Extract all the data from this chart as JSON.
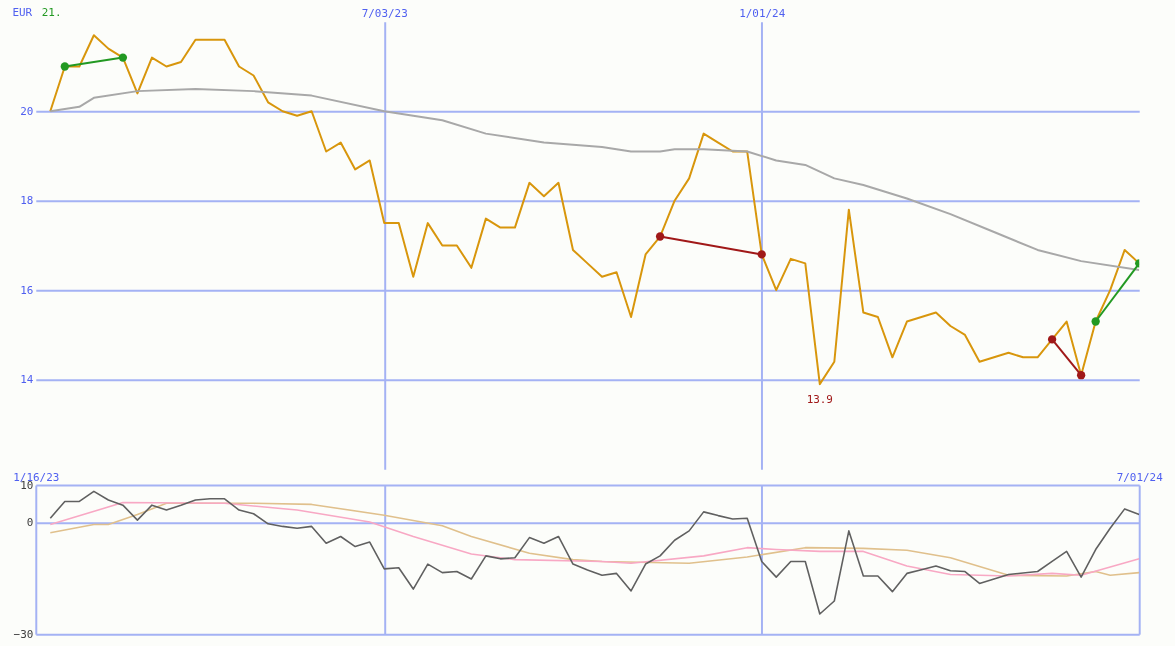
{
  "chart_data": [
    {
      "type": "line",
      "ylabel": "EUR",
      "annotations": [
        "21.",
        {
          "text": "13.9",
          "x": "2024-01-29",
          "y": 13.9
        }
      ],
      "x": [
        "2023-01-23",
        "2023-01-30",
        "2023-02-06",
        "2023-02-13",
        "2023-02-20",
        "2023-02-27",
        "2023-03-06",
        "2023-03-13",
        "2023-03-20",
        "2023-03-27",
        "2023-04-03",
        "2023-04-10",
        "2023-04-17",
        "2023-04-24",
        "2023-05-01",
        "2023-05-08",
        "2023-05-15",
        "2023-05-22",
        "2023-05-29",
        "2023-06-05",
        "2023-06-12",
        "2023-06-19",
        "2023-06-26",
        "2023-07-03",
        "2023-07-10",
        "2023-07-17",
        "2023-07-24",
        "2023-07-31",
        "2023-08-07",
        "2023-08-14",
        "2023-08-21",
        "2023-08-28",
        "2023-09-04",
        "2023-09-11",
        "2023-09-18",
        "2023-09-25",
        "2023-10-02",
        "2023-10-09",
        "2023-10-16",
        "2023-10-23",
        "2023-10-30",
        "2023-11-06",
        "2023-11-13",
        "2023-11-20",
        "2023-11-27",
        "2023-12-04",
        "2023-12-11",
        "2023-12-18",
        "2023-12-25",
        "2024-01-01",
        "2024-01-08",
        "2024-01-15",
        "2024-01-22",
        "2024-01-29",
        "2024-02-05",
        "2024-02-12",
        "2024-02-19",
        "2024-02-26",
        "2024-03-04",
        "2024-03-11",
        "2024-03-18",
        "2024-03-25",
        "2024-04-01",
        "2024-04-08",
        "2024-04-15",
        "2024-04-22",
        "2024-04-29",
        "2024-05-06",
        "2024-05-13",
        "2024-05-20",
        "2024-05-27",
        "2024-06-03",
        "2024-06-10",
        "2024-06-17",
        "2024-06-24",
        "2024-07-01"
      ],
      "series": [
        {
          "color": "#d8960c",
          "values": [
            20.0,
            21.0,
            21.0,
            21.7,
            21.4,
            21.2,
            20.4,
            21.2,
            21.0,
            21.1,
            21.6,
            21.6,
            21.6,
            21.0,
            20.8,
            20.2,
            20.0,
            19.9,
            20.0,
            19.1,
            19.3,
            18.7,
            18.9,
            17.5,
            17.5,
            16.3,
            17.5,
            17.0,
            17.0,
            16.5,
            17.6,
            17.4,
            17.4,
            18.4,
            18.1,
            18.4,
            16.9,
            16.6,
            16.3,
            16.4,
            15.4,
            16.8,
            17.2,
            18.0,
            18.5,
            19.5,
            19.3,
            19.1,
            19.1,
            16.8,
            16.0,
            16.7,
            16.6,
            13.9,
            14.4,
            17.8,
            15.5,
            15.4,
            14.5,
            15.3,
            15.4,
            15.5,
            15.2,
            15.0,
            14.4,
            14.5,
            14.6,
            14.5,
            14.5,
            14.9,
            15.3,
            14.1,
            15.3,
            16.0,
            16.9,
            16.6
          ]
        },
        {
          "color": "#a8a8a8",
          "x": [
            "2023-01-23",
            "2023-02-06",
            "2023-02-13",
            "2023-03-06",
            "2023-04-03",
            "2023-05-01",
            "2023-05-29",
            "2023-07-03",
            "2023-07-17",
            "2023-07-31",
            "2023-08-21",
            "2023-09-18",
            "2023-10-16",
            "2023-10-30",
            "2023-11-13",
            "2023-11-20",
            "2023-12-04",
            "2023-12-25",
            "2024-01-08",
            "2024-01-22",
            "2024-02-05",
            "2024-02-19",
            "2024-03-11",
            "2024-04-01",
            "2024-04-22",
            "2024-05-13",
            "2024-06-03",
            "2024-07-01"
          ],
          "values": [
            20.0,
            20.1,
            20.3,
            20.45,
            20.5,
            20.45,
            20.35,
            20.0,
            19.9,
            19.8,
            19.5,
            19.3,
            19.2,
            19.1,
            19.1,
            19.15,
            19.15,
            19.1,
            18.9,
            18.8,
            18.5,
            18.35,
            18.05,
            17.7,
            17.3,
            16.9,
            16.65,
            16.45
          ]
        },
        {
          "color": "#229922",
          "marker": "circle",
          "x": [
            "2023-01-30",
            "2023-02-27"
          ],
          "values": [
            21.0,
            21.2
          ]
        },
        {
          "color": "#a01818",
          "marker": "circle",
          "x": [
            "2023-11-13",
            "2024-01-01"
          ],
          "values": [
            17.2,
            16.8
          ]
        },
        {
          "color": "#a01818",
          "marker": "circle",
          "x": [
            "2024-05-20",
            "2024-06-03"
          ],
          "values": [
            14.9,
            14.1
          ]
        },
        {
          "color": "#229922",
          "marker": "circle",
          "x": [
            "2024-06-10",
            "2024-07-01"
          ],
          "values": [
            15.3,
            16.6
          ]
        }
      ],
      "xlim": [
        "2023-01-16",
        "2024-07-01"
      ],
      "xticks": [
        {
          "value": "2023-07-03",
          "label": "7/03/23"
        },
        {
          "value": "2024-01-01",
          "label": "1/01/24"
        }
      ],
      "ylim": [
        12,
        22
      ],
      "yticks": [
        14,
        16,
        18,
        20
      ],
      "grid": true
    },
    {
      "type": "line",
      "x": [
        "2023-01-23",
        "2023-01-30",
        "2023-02-06",
        "2023-02-13",
        "2023-02-20",
        "2023-02-27",
        "2023-03-06",
        "2023-03-13",
        "2023-03-20",
        "2023-03-27",
        "2023-04-03",
        "2023-04-10",
        "2023-04-17",
        "2023-04-24",
        "2023-05-01",
        "2023-05-08",
        "2023-05-15",
        "2023-05-22",
        "2023-05-29",
        "2023-06-05",
        "2023-06-12",
        "2023-06-19",
        "2023-06-26",
        "2023-07-03",
        "2023-07-10",
        "2023-07-17",
        "2023-07-24",
        "2023-07-31",
        "2023-08-07",
        "2023-08-14",
        "2023-08-21",
        "2023-08-28",
        "2023-09-04",
        "2023-09-11",
        "2023-09-18",
        "2023-09-25",
        "2023-10-02",
        "2023-10-09",
        "2023-10-16",
        "2023-10-23",
        "2023-10-30",
        "2023-11-06",
        "2023-11-13",
        "2023-11-20",
        "2023-11-27",
        "2023-12-04",
        "2023-12-11",
        "2023-12-18",
        "2023-12-25",
        "2024-01-01",
        "2024-01-08",
        "2024-01-15",
        "2024-01-22",
        "2024-01-29",
        "2024-02-05",
        "2024-02-12",
        "2024-02-19",
        "2024-02-26",
        "2024-03-04",
        "2024-03-11",
        "2024-03-18",
        "2024-03-25",
        "2024-04-01",
        "2024-04-08",
        "2024-04-15",
        "2024-04-22",
        "2024-04-29",
        "2024-05-06",
        "2024-05-13",
        "2024-05-20",
        "2024-05-27",
        "2024-06-03",
        "2024-06-10",
        "2024-06-17",
        "2024-06-24",
        "2024-07-01"
      ],
      "series": [
        {
          "color": "#e0c08c",
          "x": [
            "2023-01-23",
            "2023-02-13",
            "2023-02-20",
            "2023-03-06",
            "2023-03-20",
            "2023-05-01",
            "2023-05-29",
            "2023-07-03",
            "2023-07-31",
            "2023-08-14",
            "2023-09-11",
            "2023-10-02",
            "2023-10-16",
            "2023-11-27",
            "2023-12-25",
            "2024-01-22",
            "2024-02-19",
            "2024-03-11",
            "2024-04-01",
            "2024-04-29",
            "2024-05-27",
            "2024-06-10",
            "2024-06-17",
            "2024-07-01"
          ],
          "values": [
            -2.8,
            -0.6,
            -0.6,
            2.1,
            5.1,
            5.1,
            4.8,
            1.9,
            -0.9,
            -3.8,
            -8.3,
            -10.0,
            -10.5,
            -11.0,
            -9.3,
            -6.8,
            -7.0,
            -7.5,
            -9.5,
            -14.2,
            -14.4,
            -13.2,
            -14.2,
            -13.5
          ]
        },
        {
          "color": "#f8a8c4",
          "x": [
            "2023-01-23",
            "2023-02-27",
            "2023-04-17",
            "2023-05-22",
            "2023-06-26",
            "2023-07-17",
            "2023-08-14",
            "2023-09-04",
            "2023-10-16",
            "2023-10-30",
            "2023-12-04",
            "2023-12-25",
            "2024-01-08",
            "2024-01-29",
            "2024-02-19",
            "2024-03-11",
            "2024-04-01",
            "2024-04-29",
            "2024-05-20",
            "2024-06-03",
            "2024-07-01"
          ],
          "values": [
            -0.6,
            5.3,
            5.1,
            3.3,
            0.1,
            -3.8,
            -8.5,
            -10.0,
            -10.5,
            -11.0,
            -9.0,
            -6.8,
            -7.3,
            -7.8,
            -7.8,
            -11.7,
            -14.0,
            -14.4,
            -13.7,
            -14.2,
            -9.8
          ]
        },
        {
          "color": "#606060",
          "values": [
            1.1,
            5.6,
            5.6,
            8.3,
            6.0,
            4.6,
            0.6,
            4.6,
            3.3,
            4.6,
            6.0,
            6.3,
            6.3,
            3.3,
            2.3,
            -0.4,
            -1.1,
            -1.6,
            -1.1,
            -5.6,
            -3.8,
            -6.5,
            -5.3,
            -12.5,
            -12.2,
            -17.9,
            -11.2,
            -13.5,
            -13.2,
            -15.2,
            -9.0,
            -9.8,
            -9.5,
            -4.1,
            -5.6,
            -3.8,
            -11.2,
            -12.8,
            -14.2,
            -13.7,
            -18.4,
            -11.2,
            -9.0,
            -4.8,
            -2.3,
            2.8,
            1.8,
            0.9,
            1.1,
            -10.5,
            -14.7,
            -10.5,
            -10.5,
            -24.6,
            -21.1,
            -2.3,
            -14.4,
            -14.4,
            -18.6,
            -13.7,
            -12.7,
            -11.7,
            -13.0,
            -13.2,
            -16.4,
            -15.2,
            -14.0,
            -13.6,
            -13.2,
            -10.5,
            -7.8,
            -14.7,
            -7.3,
            -1.6,
            3.6,
            2.1
          ]
        }
      ],
      "xlim": [
        "2023-01-16",
        "2024-07-01"
      ],
      "xticks": [
        {
          "value": "2023-01-16",
          "label": "1/16/23"
        },
        {
          "value": "2023-07-03",
          "label": null
        },
        {
          "value": "2024-01-01",
          "label": null
        },
        {
          "value": "2024-07-01",
          "label": "7/01/24"
        }
      ],
      "ylim": [
        -30,
        10
      ],
      "yticks": [
        10,
        0,
        -30
      ],
      "grid": true
    }
  ]
}
